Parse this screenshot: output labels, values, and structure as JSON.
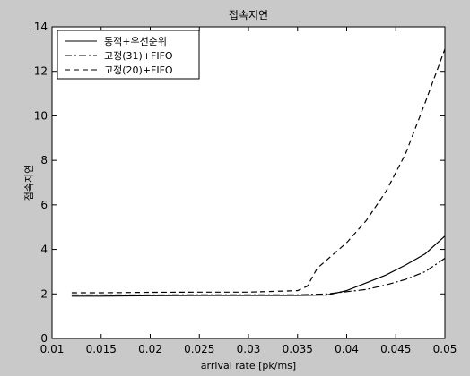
{
  "chart_data": {
    "type": "line",
    "title": "접속지연",
    "xlabel": "arrival rate [pk/ms]",
    "ylabel": "접속지연",
    "xlim": [
      0.01,
      0.05
    ],
    "ylim": [
      0,
      14
    ],
    "xticks": [
      "0.01",
      "0.015",
      "0.02",
      "0.025",
      "0.03",
      "0.035",
      "0.04",
      "0.045",
      "0.05"
    ],
    "yticks": [
      "0",
      "2",
      "4",
      "6",
      "8",
      "10",
      "12",
      "14"
    ],
    "grid": false,
    "legend_position": "top-left",
    "series": [
      {
        "name": "동적+우선순위",
        "style": "solid",
        "x": [
          0.012,
          0.015,
          0.02,
          0.025,
          0.03,
          0.035,
          0.038,
          0.04,
          0.042,
          0.044,
          0.046,
          0.048,
          0.05
        ],
        "y": [
          1.9,
          1.9,
          1.92,
          1.93,
          1.93,
          1.93,
          1.95,
          2.15,
          2.5,
          2.85,
          3.3,
          3.8,
          4.6
        ]
      },
      {
        "name": "고정(31)+FIFO",
        "style": "dashdot",
        "x": [
          0.012,
          0.015,
          0.02,
          0.025,
          0.03,
          0.035,
          0.038,
          0.04,
          0.042,
          0.044,
          0.046,
          0.048,
          0.05
        ],
        "y": [
          1.95,
          1.95,
          1.95,
          1.96,
          1.96,
          1.96,
          2.0,
          2.1,
          2.2,
          2.4,
          2.65,
          3.0,
          3.6
        ]
      },
      {
        "name": "고정(20)+FIFO",
        "style": "dashed",
        "x": [
          0.012,
          0.015,
          0.02,
          0.025,
          0.03,
          0.035,
          0.036,
          0.037,
          0.04,
          0.042,
          0.044,
          0.046,
          0.048,
          0.05
        ],
        "y": [
          2.05,
          2.05,
          2.07,
          2.08,
          2.08,
          2.15,
          2.35,
          3.15,
          4.3,
          5.3,
          6.6,
          8.3,
          10.6,
          13.0
        ]
      }
    ]
  }
}
